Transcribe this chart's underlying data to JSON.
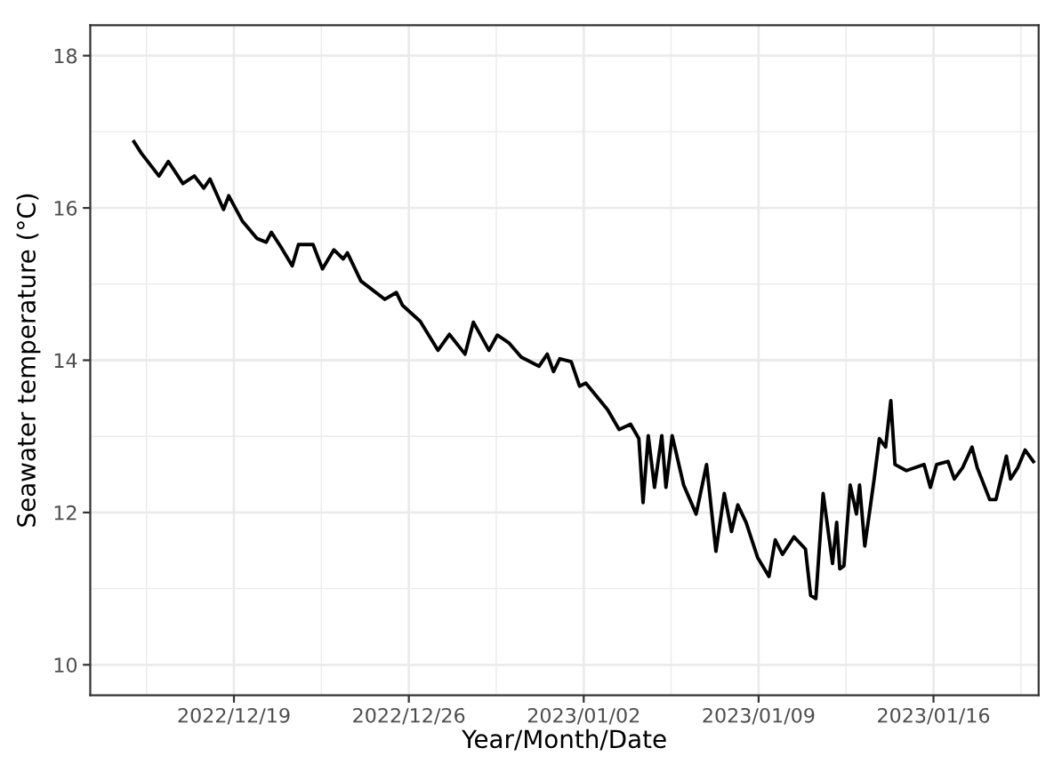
{
  "chart_data": {
    "type": "line",
    "xlabel": "Year/Month/Date",
    "ylabel": "Seawater temperature (°C)",
    "xlim": [
      "2022-12-13T06:00",
      "2023-01-20T05:00"
    ],
    "ylim": [
      9.6,
      18.4
    ],
    "xticks": [
      {
        "value": "2022-12-19",
        "label": "2022/12/19"
      },
      {
        "value": "2022-12-26",
        "label": "2022/12/26"
      },
      {
        "value": "2023-01-02",
        "label": "2023/01/02"
      },
      {
        "value": "2023-01-09",
        "label": "2023/01/09"
      },
      {
        "value": "2023-01-16",
        "label": "2023/01/16"
      }
    ],
    "yticks": [
      10,
      12,
      14,
      16,
      18
    ],
    "grid": true,
    "series": [
      {
        "color": "#000000",
        "x": [
          "2022-12-15T00:00",
          "2022-12-15T07:00",
          "2022-12-16T00:00",
          "2022-12-16T09:00",
          "2022-12-16T23:00",
          "2022-12-17T10:00",
          "2022-12-17T19:00",
          "2022-12-18T01:00",
          "2022-12-18T14:00",
          "2022-12-18T19:00",
          "2022-12-19T08:00",
          "2022-12-19T22:00",
          "2022-12-20T07:00",
          "2022-12-20T12:00",
          "2022-12-20T21:00",
          "2022-12-21T08:00",
          "2022-12-21T14:00",
          "2022-12-22T04:00",
          "2022-12-22T13:00",
          "2022-12-23T00:00",
          "2022-12-23T09:00",
          "2022-12-23T13:00",
          "2022-12-24T02:00",
          "2022-12-25T01:00",
          "2022-12-25T12:00",
          "2022-12-25T18:00",
          "2022-12-26T11:00",
          "2022-12-27T04:00",
          "2022-12-27T15:00",
          "2022-12-28T06:00",
          "2022-12-28T14:00",
          "2022-12-29T05:00",
          "2022-12-29T13:00",
          "2022-12-30T00:00",
          "2022-12-30T12:00",
          "2022-12-31T05:00",
          "2022-12-31T13:00",
          "2022-12-31T19:00",
          "2023-01-01T01:00",
          "2023-01-01T12:00",
          "2023-01-01T20:00",
          "2023-01-02T02:00",
          "2023-01-02T23:00",
          "2023-01-03T10:00",
          "2023-01-03T21:00",
          "2023-01-04T05:00",
          "2023-01-04T09:00",
          "2023-01-04T14:00",
          "2023-01-04T20:00",
          "2023-01-05T03:00",
          "2023-01-05T07:00",
          "2023-01-05T13:00",
          "2023-01-06T00:00",
          "2023-01-06T12:00",
          "2023-01-06T22:00",
          "2023-01-07T07:00",
          "2023-01-07T15:00",
          "2023-01-07T22:00",
          "2023-01-08T04:00",
          "2023-01-08T12:00",
          "2023-01-08T23:00",
          "2023-01-09T10:00",
          "2023-01-09T16:00",
          "2023-01-09T23:00",
          "2023-01-10T10:00",
          "2023-01-10T21:00",
          "2023-01-11T02:00",
          "2023-01-11T07:00",
          "2023-01-11T14:00",
          "2023-01-11T23:00",
          "2023-01-12T03:00",
          "2023-01-12T06:00",
          "2023-01-12T10:00",
          "2023-01-12T16:00",
          "2023-01-12T22:00",
          "2023-01-13T01:00",
          "2023-01-13T06:00",
          "2023-01-13T15:00",
          "2023-01-13T20:00",
          "2023-01-14T02:00",
          "2023-01-14T07:00",
          "2023-01-14T11:00",
          "2023-01-14T22:00",
          "2023-01-15T15:00",
          "2023-01-15T21:00",
          "2023-01-16T03:00",
          "2023-01-16T14:00",
          "2023-01-16T20:00",
          "2023-01-17T04:00",
          "2023-01-17T13:00",
          "2023-01-17T18:00",
          "2023-01-18T06:00",
          "2023-01-18T12:00",
          "2023-01-18T22:00",
          "2023-01-19T02:00",
          "2023-01-19T09:00",
          "2023-01-19T16:00",
          "2023-01-20T00:00"
        ],
        "values": [
          16.87,
          16.72,
          16.42,
          16.61,
          16.32,
          16.42,
          16.26,
          16.38,
          15.98,
          16.16,
          15.83,
          15.6,
          15.55,
          15.68,
          15.49,
          15.24,
          15.52,
          15.52,
          15.2,
          15.45,
          15.33,
          15.41,
          15.04,
          14.8,
          14.89,
          14.72,
          14.51,
          14.13,
          14.34,
          14.08,
          14.5,
          14.13,
          14.33,
          14.23,
          14.04,
          13.92,
          14.08,
          13.85,
          14.02,
          13.98,
          13.66,
          13.7,
          13.35,
          13.09,
          13.16,
          12.97,
          12.13,
          13.01,
          12.33,
          13.01,
          12.33,
          13.01,
          12.36,
          11.98,
          12.63,
          11.49,
          12.25,
          11.75,
          12.1,
          11.87,
          11.41,
          11.16,
          11.64,
          11.45,
          11.68,
          11.52,
          10.91,
          10.87,
          12.25,
          11.33,
          11.87,
          11.26,
          11.3,
          12.36,
          11.98,
          12.36,
          11.56,
          12.44,
          12.97,
          12.86,
          13.47,
          12.63,
          12.55,
          12.63,
          12.33,
          12.63,
          12.67,
          12.44,
          12.59,
          12.86,
          12.59,
          12.17,
          12.17,
          12.74,
          12.44,
          12.59,
          12.82,
          12.67
        ]
      }
    ]
  }
}
